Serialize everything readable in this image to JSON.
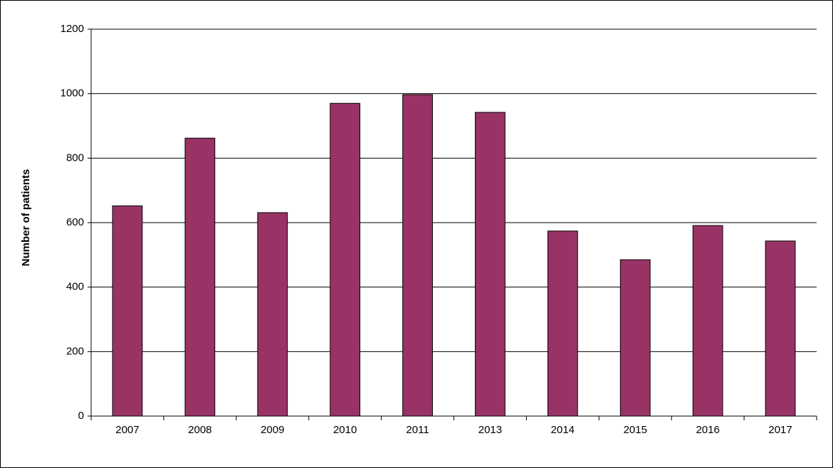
{
  "chart_data": {
    "type": "bar",
    "y_label": "Number of patients",
    "categories": [
      "2007",
      "2008",
      "2009",
      "2010",
      "2011",
      "2013",
      "2014",
      "2015",
      "2016",
      "2017"
    ],
    "values": [
      652,
      862,
      631,
      970,
      997,
      942,
      574,
      485,
      591,
      543
    ],
    "color": "#993366",
    "ylim": [
      0,
      1200
    ],
    "yticks": [
      0,
      200,
      400,
      600,
      800,
      1000,
      1200
    ],
    "grid": true
  }
}
